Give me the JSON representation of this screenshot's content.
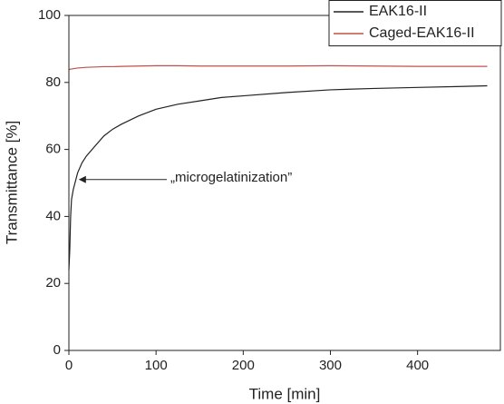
{
  "chart_data": {
    "type": "line",
    "xlabel": "Time [min]",
    "ylabel": "Transmittance [%]",
    "x": [
      0,
      1,
      2,
      3,
      5,
      10,
      15,
      20,
      30,
      40,
      50,
      60,
      80,
      100,
      125,
      150,
      175,
      200,
      250,
      300,
      350,
      400,
      450,
      480
    ],
    "series": [
      {
        "name": "EAK16-II",
        "color": "#222222",
        "values": [
          24,
          30,
          40,
          45,
          48,
          53,
          56,
          58,
          61,
          64,
          66,
          67.5,
          70,
          72,
          73.5,
          74.5,
          75.5,
          76,
          77,
          77.8,
          78.2,
          78.5,
          78.8,
          79
        ]
      },
      {
        "name": "Caged-EAK16-II",
        "color": "#c0504d",
        "values": [
          83.8,
          83.9,
          84,
          84,
          84.1,
          84.3,
          84.4,
          84.5,
          84.6,
          84.7,
          84.7,
          84.8,
          84.9,
          85,
          85,
          84.9,
          84.9,
          84.9,
          84.9,
          85,
          84.9,
          84.8,
          84.8,
          84.8
        ]
      }
    ],
    "annotation": "„microgelatinization”",
    "xlim": [
      0,
      495
    ],
    "xticks": [
      0,
      100,
      200,
      300,
      400
    ],
    "ylim": [
      0,
      100
    ],
    "yticks": [
      0,
      20,
      40,
      60,
      80,
      100
    ],
    "legend": "top-right"
  }
}
